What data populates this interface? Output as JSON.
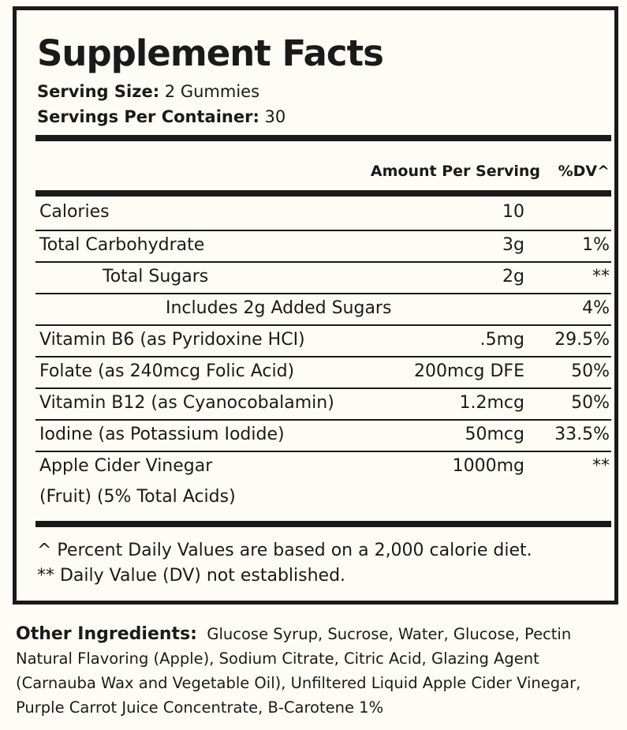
{
  "title": "Supplement Facts",
  "serving_size": {
    "label": "Serving Size:",
    "value": "2 Gummies"
  },
  "servings_per_container": {
    "label": "Servings Per Container:",
    "value": "30"
  },
  "header": {
    "amount": "Amount Per Serving",
    "dv": "%DV^"
  },
  "rows": [
    {
      "name": "Calories",
      "amount": "10",
      "dv": ""
    },
    {
      "name": "Total Carbohydrate",
      "amount": "3g",
      "dv": "1%"
    },
    {
      "name": "Total Sugars",
      "amount": "2g",
      "dv": "**"
    },
    {
      "name": "Includes 2g Added Sugars",
      "amount": "",
      "dv": "4%"
    },
    {
      "name": "Vitamin B6 (as Pyridoxine HCI)",
      "amount": ".5mg",
      "dv": "29.5%"
    },
    {
      "name": "Folate (as 240mcg Folic Acid)",
      "amount": "200mcg DFE",
      "dv": "50%"
    },
    {
      "name": "Vitamin B12 (as Cyanocobalamin)",
      "amount": "1.2mcg",
      "dv": "50%"
    },
    {
      "name": "Iodine (as Potassium Iodide)",
      "amount": "50mcg",
      "dv": "33.5%"
    },
    {
      "name": "Apple Cider Vinegar",
      "name2": "(Fruit) (5% Total Acids)",
      "amount": "1000mg",
      "dv": "**"
    }
  ],
  "footnotes": [
    "^ Percent Daily Values are based on a 2,000 calorie diet.",
    "** Daily Value (DV) not established."
  ],
  "other_ingredients": {
    "label": "Other Ingredients:",
    "text": "Glucose Syrup, Sucrose, Water, Glucose, Pectin Natural Flavoring (Apple), Sodium Citrate, Citric Acid, Glazing Agent (Carnauba Wax and Vegetable Oil), Unfiltered Liquid Apple Cider Vinegar, Purple Carrot Juice Concentrate, B-Carotene 1%"
  }
}
